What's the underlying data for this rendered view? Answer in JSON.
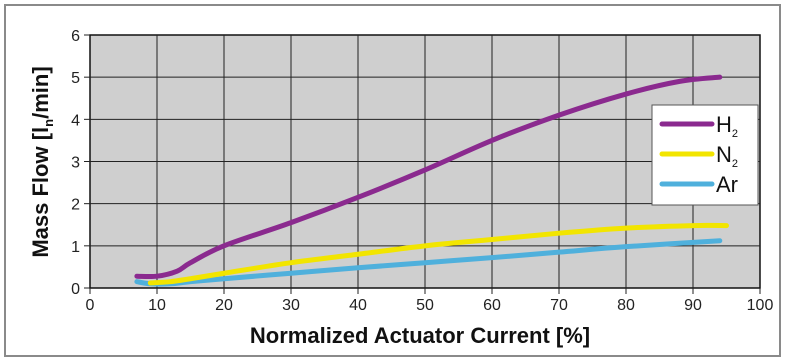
{
  "chart_data": {
    "type": "line",
    "xlabel": "Normalized Actuator Current [%]",
    "ylabel": {
      "before": "Mass Flow [l",
      "subscript": "n",
      "after": "/min]"
    },
    "xlim": [
      0,
      100
    ],
    "ylim": [
      0,
      6
    ],
    "x_ticks": [
      "0",
      "10",
      "20",
      "30",
      "40",
      "50",
      "60",
      "70",
      "80",
      "90",
      "100"
    ],
    "y_ticks": [
      "0",
      "1",
      "2",
      "3",
      "4",
      "5",
      "6"
    ],
    "grid": true,
    "legend_position": "right",
    "series": [
      {
        "name": {
          "base": "H",
          "subscript": "2"
        },
        "color": "#8b2a8f",
        "points": [
          [
            7,
            0.28
          ],
          [
            10,
            0.28
          ],
          [
            13,
            0.4
          ],
          [
            15,
            0.6
          ],
          [
            20,
            1.0
          ],
          [
            30,
            1.55
          ],
          [
            40,
            2.15
          ],
          [
            50,
            2.8
          ],
          [
            60,
            3.5
          ],
          [
            70,
            4.1
          ],
          [
            80,
            4.6
          ],
          [
            88,
            4.9
          ],
          [
            94,
            5.0
          ]
        ]
      },
      {
        "name": {
          "base": "N",
          "subscript": "2"
        },
        "color": "#f2e500",
        "points": [
          [
            9,
            0.12
          ],
          [
            12,
            0.15
          ],
          [
            15,
            0.22
          ],
          [
            20,
            0.35
          ],
          [
            30,
            0.6
          ],
          [
            40,
            0.8
          ],
          [
            50,
            1.0
          ],
          [
            60,
            1.15
          ],
          [
            70,
            1.3
          ],
          [
            80,
            1.42
          ],
          [
            90,
            1.48
          ],
          [
            95,
            1.48
          ]
        ]
      },
      {
        "name": {
          "base": "Ar",
          "subscript": ""
        },
        "color": "#4fb0dc",
        "points": [
          [
            7,
            0.15
          ],
          [
            9,
            0.1
          ],
          [
            12,
            0.1
          ],
          [
            15,
            0.15
          ],
          [
            20,
            0.22
          ],
          [
            30,
            0.35
          ],
          [
            40,
            0.48
          ],
          [
            50,
            0.6
          ],
          [
            60,
            0.72
          ],
          [
            70,
            0.85
          ],
          [
            80,
            0.98
          ],
          [
            94,
            1.12
          ]
        ]
      }
    ]
  }
}
